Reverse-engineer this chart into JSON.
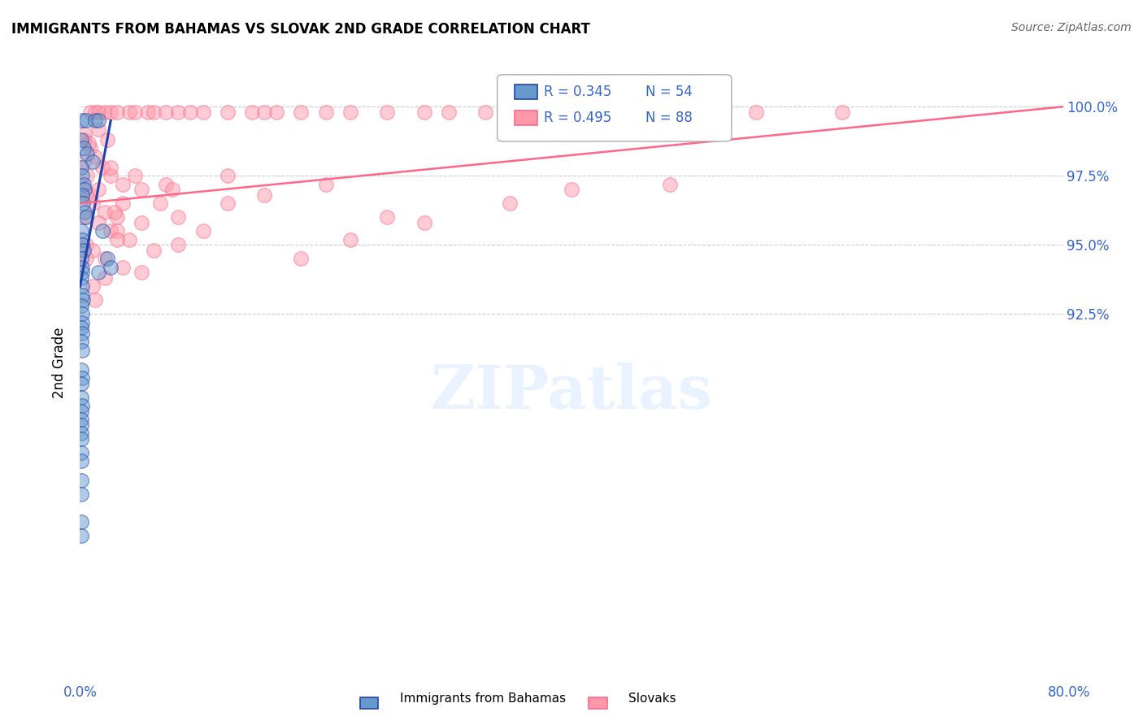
{
  "title": "IMMIGRANTS FROM BAHAMAS VS SLOVAK 2ND GRADE CORRELATION CHART",
  "source": "Source: ZipAtlas.com",
  "ylabel": "2nd Grade",
  "xmin": 0.0,
  "xmax": 80.0,
  "ymin": 80.0,
  "ymax": 101.5,
  "legend_r_blue": "R = 0.345",
  "legend_n_blue": "N = 54",
  "legend_r_pink": "R = 0.495",
  "legend_n_pink": "N = 88",
  "legend_label_blue": "Immigrants from Bahamas",
  "legend_label_pink": "Slovaks",
  "color_blue": "#6699CC",
  "color_pink": "#FF99AA",
  "color_blue_line": "#2244AA",
  "color_pink_line": "#FF6688",
  "color_axis_labels": "#3366CC",
  "blue_points": [
    [
      0.2,
      99.5
    ],
    [
      0.5,
      99.5
    ],
    [
      1.2,
      99.5
    ],
    [
      1.5,
      99.5
    ],
    [
      0.1,
      98.8
    ],
    [
      0.3,
      98.5
    ],
    [
      0.6,
      98.3
    ],
    [
      1.0,
      98.0
    ],
    [
      0.1,
      97.8
    ],
    [
      0.2,
      97.5
    ],
    [
      0.3,
      97.2
    ],
    [
      0.4,
      97.0
    ],
    [
      0.15,
      96.8
    ],
    [
      0.25,
      96.5
    ],
    [
      0.35,
      96.2
    ],
    [
      0.5,
      96.0
    ],
    [
      0.1,
      95.5
    ],
    [
      0.15,
      95.2
    ],
    [
      0.2,
      95.0
    ],
    [
      0.3,
      94.8
    ],
    [
      0.1,
      94.5
    ],
    [
      0.15,
      94.2
    ],
    [
      0.2,
      94.0
    ],
    [
      0.1,
      93.8
    ],
    [
      0.15,
      93.5
    ],
    [
      0.2,
      93.2
    ],
    [
      0.25,
      93.0
    ],
    [
      0.1,
      92.8
    ],
    [
      0.15,
      92.5
    ],
    [
      0.2,
      92.2
    ],
    [
      0.1,
      92.0
    ],
    [
      0.15,
      91.8
    ],
    [
      0.1,
      91.5
    ],
    [
      0.15,
      91.2
    ],
    [
      1.8,
      95.5
    ],
    [
      0.1,
      90.5
    ],
    [
      0.15,
      90.2
    ],
    [
      0.1,
      90.0
    ],
    [
      0.1,
      89.5
    ],
    [
      0.15,
      89.2
    ],
    [
      0.12,
      89.0
    ],
    [
      0.1,
      88.7
    ],
    [
      0.12,
      88.5
    ],
    [
      0.1,
      88.2
    ],
    [
      0.12,
      88.0
    ],
    [
      0.1,
      87.5
    ],
    [
      0.12,
      87.2
    ],
    [
      1.5,
      94.0
    ],
    [
      0.1,
      86.5
    ],
    [
      0.12,
      86.0
    ],
    [
      2.2,
      94.5
    ],
    [
      0.1,
      85.0
    ],
    [
      0.12,
      84.5
    ],
    [
      2.5,
      94.2
    ]
  ],
  "pink_points": [
    [
      0.8,
      99.8
    ],
    [
      1.2,
      99.8
    ],
    [
      1.5,
      99.8
    ],
    [
      2.0,
      99.8
    ],
    [
      2.5,
      99.8
    ],
    [
      3.0,
      99.8
    ],
    [
      4.0,
      99.8
    ],
    [
      4.5,
      99.8
    ],
    [
      5.5,
      99.8
    ],
    [
      6.0,
      99.8
    ],
    [
      7.0,
      99.8
    ],
    [
      8.0,
      99.8
    ],
    [
      9.0,
      99.8
    ],
    [
      10.0,
      99.8
    ],
    [
      12.0,
      99.8
    ],
    [
      14.0,
      99.8
    ],
    [
      15.0,
      99.8
    ],
    [
      16.0,
      99.8
    ],
    [
      18.0,
      99.8
    ],
    [
      20.0,
      99.8
    ],
    [
      22.0,
      99.8
    ],
    [
      25.0,
      99.8
    ],
    [
      28.0,
      99.8
    ],
    [
      30.0,
      99.8
    ],
    [
      33.0,
      99.8
    ],
    [
      38.0,
      99.8
    ],
    [
      42.0,
      99.8
    ],
    [
      48.0,
      99.8
    ],
    [
      55.0,
      99.8
    ],
    [
      62.0,
      99.8
    ],
    [
      0.4,
      98.8
    ],
    [
      0.8,
      98.5
    ],
    [
      1.2,
      98.2
    ],
    [
      1.8,
      97.8
    ],
    [
      2.5,
      97.5
    ],
    [
      3.5,
      97.2
    ],
    [
      0.3,
      97.0
    ],
    [
      0.5,
      96.8
    ],
    [
      1.0,
      96.5
    ],
    [
      2.0,
      96.2
    ],
    [
      3.0,
      96.0
    ],
    [
      1.5,
      95.8
    ],
    [
      2.5,
      95.5
    ],
    [
      4.0,
      95.2
    ],
    [
      0.4,
      99.0
    ],
    [
      0.7,
      98.7
    ],
    [
      1.5,
      99.2
    ],
    [
      2.2,
      98.8
    ],
    [
      5.0,
      97.0
    ],
    [
      6.5,
      96.5
    ],
    [
      8.0,
      96.0
    ],
    [
      10.0,
      95.5
    ],
    [
      0.5,
      95.0
    ],
    [
      1.0,
      94.8
    ],
    [
      2.0,
      94.5
    ],
    [
      3.5,
      94.2
    ],
    [
      4.5,
      97.5
    ],
    [
      7.0,
      97.2
    ],
    [
      0.8,
      96.8
    ],
    [
      1.5,
      97.0
    ],
    [
      12.0,
      97.5
    ],
    [
      20.0,
      97.2
    ],
    [
      5.0,
      95.8
    ],
    [
      3.0,
      95.5
    ],
    [
      0.3,
      98.0
    ],
    [
      2.8,
      96.2
    ],
    [
      6.0,
      94.8
    ],
    [
      15.0,
      96.8
    ],
    [
      1.0,
      93.5
    ],
    [
      3.5,
      96.5
    ],
    [
      40.0,
      97.0
    ],
    [
      48.0,
      97.2
    ],
    [
      0.5,
      94.5
    ],
    [
      2.5,
      97.8
    ],
    [
      8.0,
      95.0
    ],
    [
      22.0,
      95.2
    ],
    [
      1.2,
      93.0
    ],
    [
      5.0,
      94.0
    ],
    [
      35.0,
      96.5
    ],
    [
      28.0,
      95.8
    ],
    [
      0.6,
      97.5
    ],
    [
      3.0,
      95.2
    ],
    [
      12.0,
      96.5
    ],
    [
      18.0,
      94.5
    ],
    [
      7.5,
      97.0
    ],
    [
      25.0,
      96.0
    ],
    [
      0.4,
      96.0
    ],
    [
      2.0,
      93.8
    ]
  ],
  "blue_trendline": [
    [
      0.0,
      93.5
    ],
    [
      2.5,
      99.5
    ]
  ],
  "pink_trendline": [
    [
      0.0,
      96.5
    ],
    [
      80.0,
      100.0
    ]
  ],
  "ytick_vals": [
    80.0,
    82.5,
    85.0,
    87.5,
    90.0,
    92.5,
    95.0,
    97.5,
    100.0
  ],
  "ytick_labels": [
    "",
    "",
    "",
    "",
    "",
    "92.5%",
    "95.0%",
    "97.5%",
    "100.0%"
  ],
  "grid_lines": [
    92.5,
    95.0,
    97.5,
    100.0
  ]
}
